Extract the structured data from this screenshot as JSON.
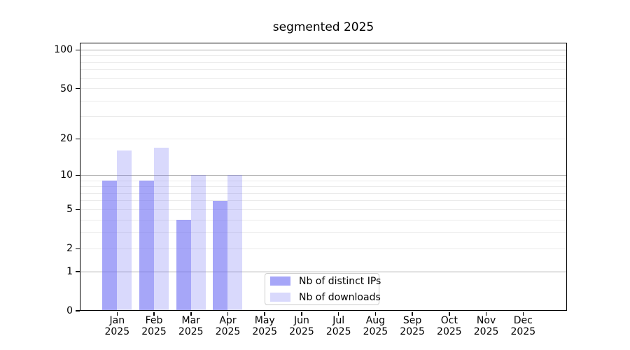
{
  "chart_data": {
    "type": "bar",
    "title": "segmented 2025",
    "x": {
      "months": [
        "Jan",
        "Feb",
        "Mar",
        "Apr",
        "May",
        "Jun",
        "Jul",
        "Aug",
        "Sep",
        "Oct",
        "Nov",
        "Dec"
      ],
      "year": "2025"
    },
    "series": [
      {
        "key": "ips",
        "name": "Nb of distinct IPs",
        "fill": "rgba(107,107,243,0.60)",
        "color_hex": "#a6a6f8",
        "values": [
          9,
          9,
          4,
          6,
          0,
          0,
          0,
          0,
          0,
          0,
          0,
          0
        ]
      },
      {
        "key": "downloads",
        "name": "Nb of downloads",
        "fill": "rgba(107,107,243,0.26)",
        "color_hex": "#d8d8fa",
        "values": [
          16,
          17,
          10,
          10,
          0,
          0,
          0,
          0,
          0,
          0,
          0,
          0
        ]
      }
    ],
    "y_axis": {
      "scale": "log1p",
      "ticks": [
        0,
        1,
        2,
        5,
        10,
        20,
        50,
        100
      ],
      "major_gridlines": [
        1,
        10,
        100
      ],
      "minor_gridlines": [
        2,
        3,
        4,
        5,
        6,
        7,
        8,
        9,
        20,
        30,
        40,
        50,
        60,
        70,
        80,
        90
      ],
      "max": 114
    },
    "legend_position": "lower center",
    "grid": "on",
    "colors": {
      "major_grid": "#b0b0b0",
      "minor_grid": "#ebebeb",
      "axis": "#000000",
      "legend_border": "#cccccc",
      "background": "#ffffff"
    }
  }
}
